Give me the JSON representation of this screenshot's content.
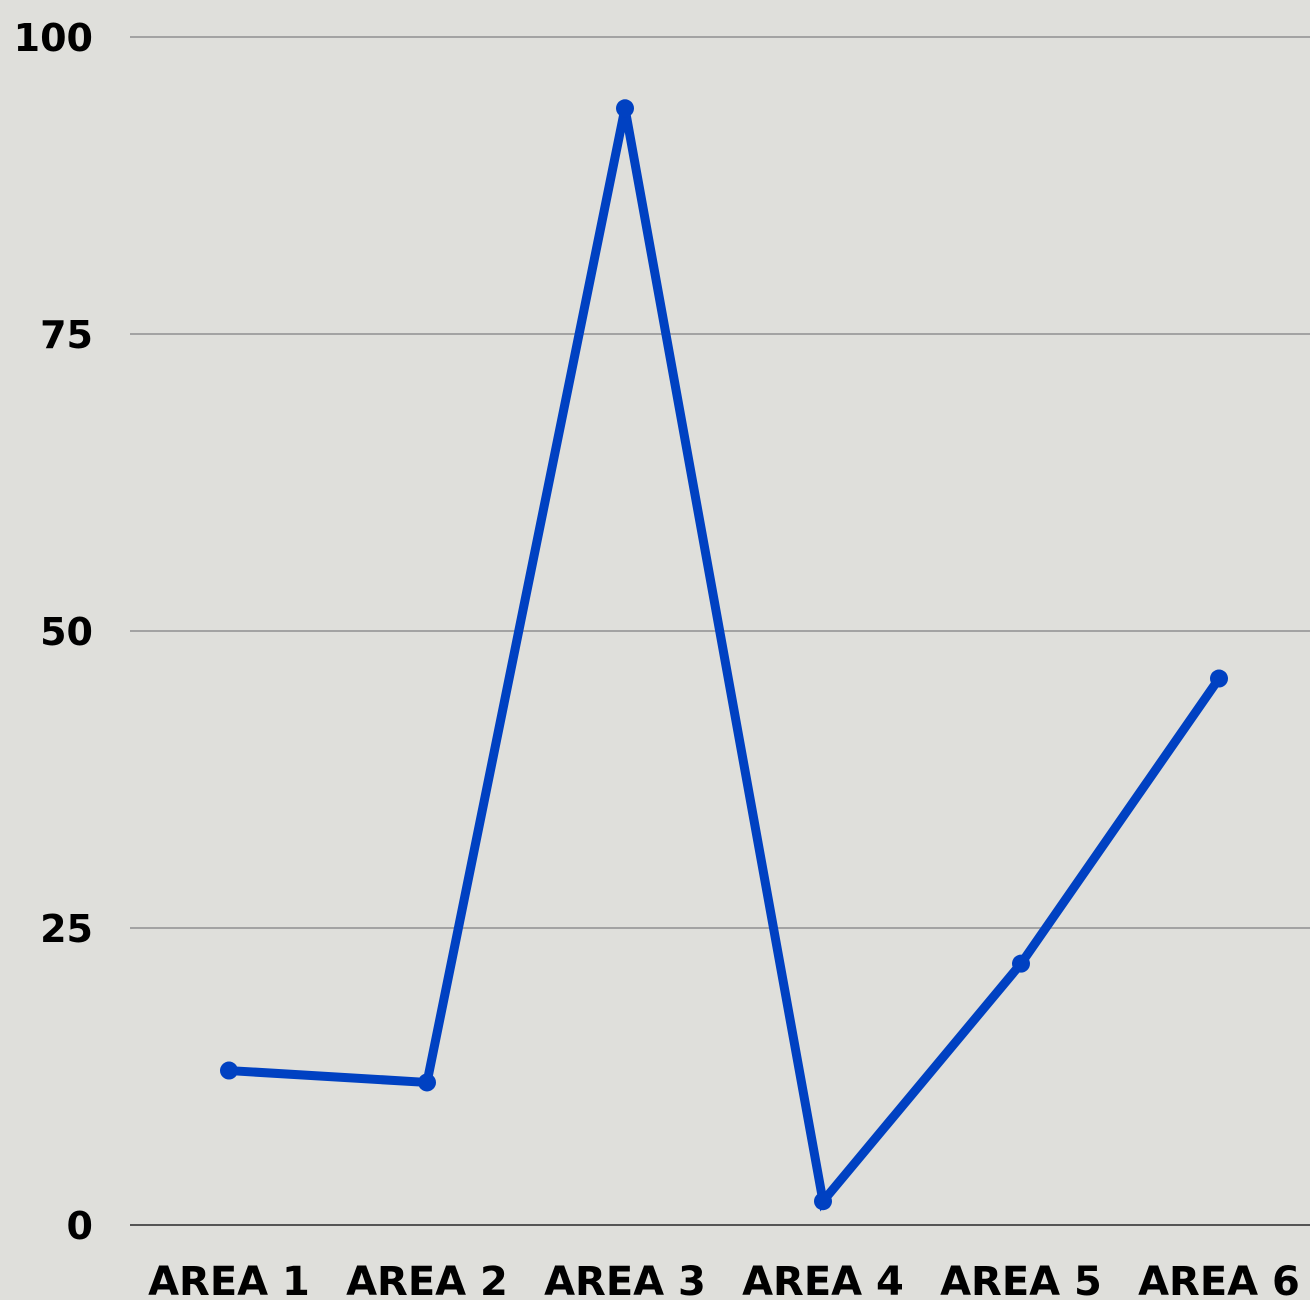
{
  "chart_data": {
    "type": "line",
    "categories": [
      "AREA 1",
      "AREA 2",
      "AREA 3",
      "AREA 4",
      "AREA 5",
      "AREA 6"
    ],
    "series": [
      {
        "values": [
          13,
          12,
          94,
          2,
          22,
          46
        ]
      }
    ],
    "y_ticks": [
      "0",
      "25",
      "50",
      "75",
      "100"
    ],
    "ylim": [
      0,
      100
    ],
    "grid": true,
    "colors": {
      "background": "#dfdfdb",
      "line": "#0041c2",
      "grid": "#a3a3a3",
      "baseline": "#555555",
      "text": "#000000"
    }
  }
}
